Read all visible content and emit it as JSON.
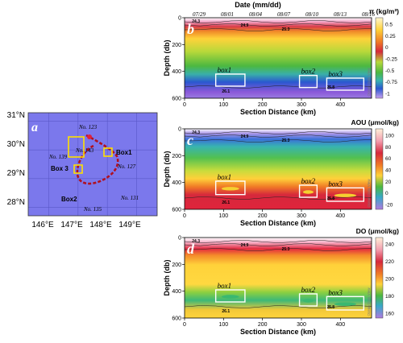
{
  "map": {
    "panel_letter": "a",
    "lat_labels": [
      "31°N",
      "30°N",
      "29°N",
      "28°N"
    ],
    "lon_labels": [
      "146°E",
      "147°E",
      "148°E",
      "149°E"
    ],
    "lon_ticks": [
      146,
      147,
      148,
      149
    ],
    "lat_ticks": [
      31,
      30,
      29,
      28
    ],
    "lon_range": [
      145.3,
      149.7
    ],
    "lat_range": [
      27.7,
      31.3
    ],
    "station_labels": [
      "No. 123",
      "No. 143",
      "No. 139",
      "No. 127",
      "No. 131",
      "No. 135"
    ],
    "box_labels": [
      "Box1",
      "Box 3",
      "Box2"
    ],
    "colors": {
      "ocean": "#7b78ec",
      "track": "#b01020",
      "box": "#ffe000"
    }
  },
  "panels_common": {
    "date_title": "Date (mm/dd)",
    "dates": [
      "07/29",
      "08/01",
      "08/04",
      "08/07",
      "08/10",
      "08/13",
      "08/16"
    ],
    "xlabel": "Section Distance (km)",
    "ylabel": "Depth (db)",
    "x_ticks": [
      "0",
      "100",
      "200",
      "300",
      "400"
    ],
    "y_ticks": [
      "0",
      "200",
      "400",
      "600"
    ],
    "box_labels": [
      "box1",
      "box2",
      "box3"
    ],
    "watermark": "Ocean Data View",
    "contour_labels": [
      "24.3",
      "24.9",
      "25.3",
      "25.8",
      "26.1"
    ]
  },
  "chart_data": [
    {
      "type": "heatmap",
      "panel": "b",
      "variable_label": "π (kg/m³)",
      "colorbar_ticks": [
        "0.5",
        "0.25",
        "0",
        "-0.25",
        "-0.5",
        "-0.75",
        "-1"
      ],
      "clim": [
        -1,
        0.6
      ],
      "xlim": [
        0,
        480
      ],
      "ylim": [
        600,
        0
      ],
      "boxes": [
        {
          "name": "box1",
          "x": [
            80,
            155
          ],
          "y": [
            420,
            510
          ]
        },
        {
          "name": "box2",
          "x": [
            295,
            340
          ],
          "y": [
            430,
            520
          ]
        },
        {
          "name": "box3",
          "x": [
            365,
            460
          ],
          "y": [
            450,
            540
          ]
        }
      ]
    },
    {
      "type": "heatmap",
      "panel": "c",
      "variable_label": "AOU (μmol/kg)",
      "colorbar_ticks": [
        "100",
        "80",
        "60",
        "40",
        "20",
        "0",
        "-20"
      ],
      "clim": [
        -20,
        100
      ],
      "xlim": [
        0,
        480
      ],
      "ylim": [
        600,
        0
      ],
      "boxes": [
        {
          "name": "box1",
          "x": [
            80,
            155
          ],
          "y": [
            390,
            490
          ]
        },
        {
          "name": "box2",
          "x": [
            295,
            340
          ],
          "y": [
            420,
            510
          ]
        },
        {
          "name": "box3",
          "x": [
            365,
            460
          ],
          "y": [
            440,
            540
          ]
        }
      ]
    },
    {
      "type": "heatmap",
      "panel": "d",
      "variable_label": "DO (μmol/kg)",
      "colorbar_ticks": [
        "240",
        "220",
        "200",
        "180",
        "160"
      ],
      "clim": [
        150,
        250
      ],
      "xlim": [
        0,
        480
      ],
      "ylim": [
        600,
        0
      ],
      "boxes": [
        {
          "name": "box1",
          "x": [
            80,
            155
          ],
          "y": [
            390,
            480
          ]
        },
        {
          "name": "box2",
          "x": [
            295,
            340
          ],
          "y": [
            420,
            510
          ]
        },
        {
          "name": "box3",
          "x": [
            365,
            460
          ],
          "y": [
            440,
            540
          ]
        }
      ]
    }
  ]
}
